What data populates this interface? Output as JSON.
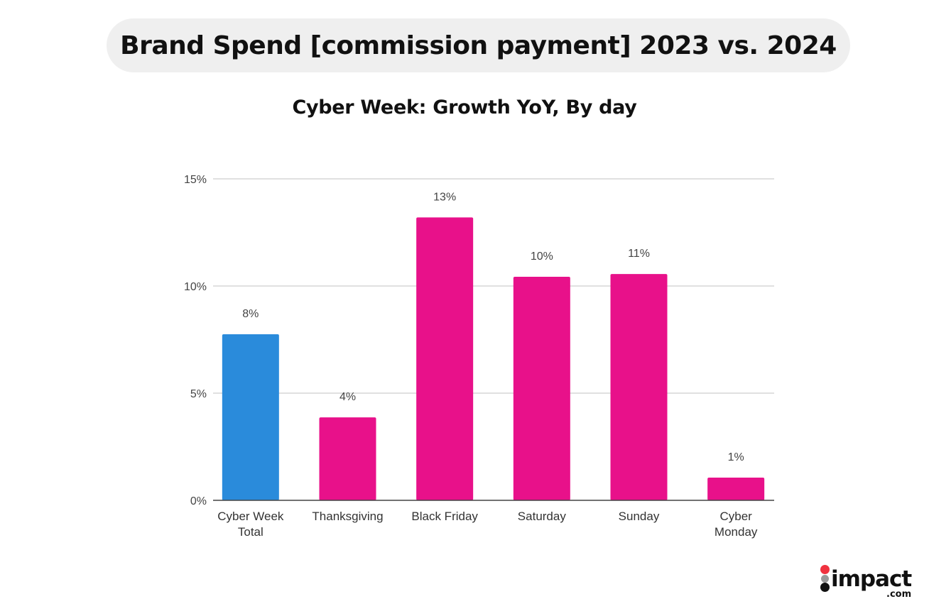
{
  "header": {
    "title": "Brand Spend [commission payment] 2023 vs. 2024"
  },
  "chart_data": {
    "type": "bar",
    "title": "Cyber Week: Growth YoY, By day",
    "xlabel": "",
    "ylabel": "",
    "ylim": [
      0,
      15
    ],
    "y_ticks": [
      0,
      5,
      10,
      15
    ],
    "y_tick_labels": [
      "0%",
      "5%",
      "10%",
      "15%"
    ],
    "grid": true,
    "legend": "none",
    "categories": [
      "Cyber Week Total",
      "Thanksgiving",
      "Black Friday",
      "Saturday",
      "Sunday",
      "Cyber Monday"
    ],
    "category_label_lines": [
      [
        "Cyber Week",
        "Total"
      ],
      [
        "Thanksgiving"
      ],
      [
        "Black Friday"
      ],
      [
        "Saturday"
      ],
      [
        "Sunday"
      ],
      [
        "Cyber",
        "Monday"
      ]
    ],
    "values": [
      7.75,
      3.87,
      13.2,
      10.43,
      10.56,
      1.06
    ],
    "data_labels": [
      "8%",
      "4%",
      "13%",
      "10%",
      "11%",
      "1%"
    ],
    "colors": [
      "#2a8bdb",
      "#e8118a",
      "#e8118a",
      "#e8118a",
      "#e8118a",
      "#e8118a"
    ]
  },
  "logo": {
    "text": "impact",
    "suffix": ".com",
    "dot_colors": [
      "#f0323f",
      "#9a9a9a",
      "#111111"
    ]
  }
}
